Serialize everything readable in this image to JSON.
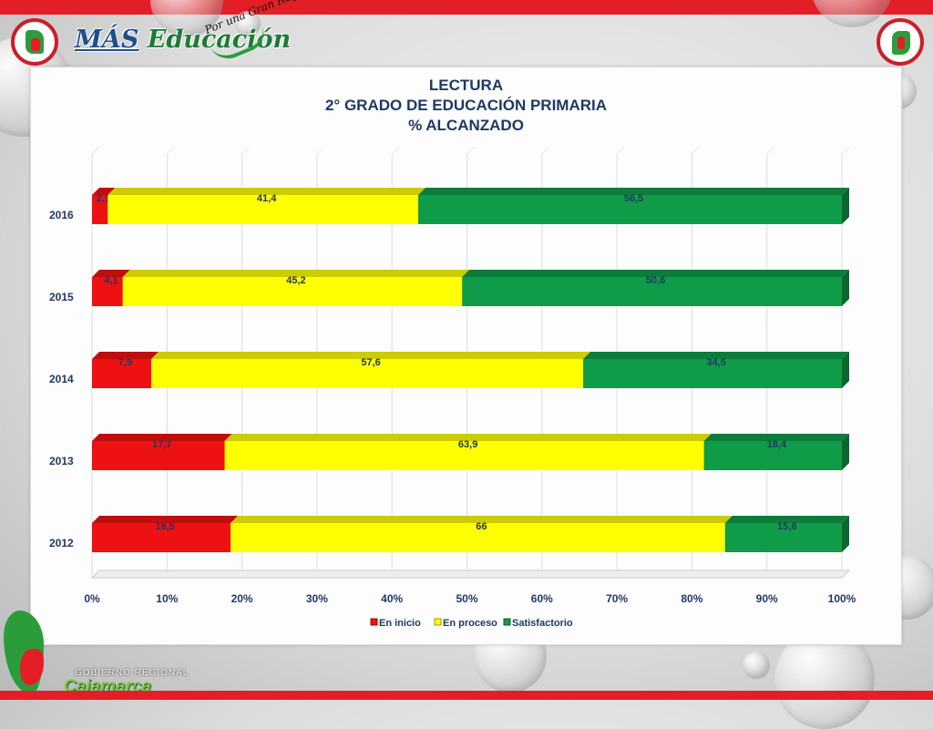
{
  "header": {
    "brand_mas": "MÁS",
    "brand_educacion": "Educación",
    "slogan": "Por una Gran Región"
  },
  "footer": {
    "line1": "GOBIERNO REGIONAL",
    "line2": "Cajamarca"
  },
  "colors": {
    "en_inicio": "#ee1111",
    "en_proceso": "#ffff00",
    "satisfactorio": "#109b48",
    "title": "#1f3864",
    "top_bar": "#e41e26"
  },
  "chart_data": {
    "type": "bar",
    "orientation": "horizontal",
    "stacked": "percent",
    "title_lines": [
      "LECTURA",
      "2° GRADO DE EDUCACIÓN PRIMARIA",
      "% ALCANZADO"
    ],
    "categories": [
      "2016",
      "2015",
      "2014",
      "2013",
      "2012"
    ],
    "series": [
      {
        "name": "En inicio",
        "values": [
          2.1,
          4.1,
          7.9,
          17.7,
          18.5
        ],
        "labels": [
          "2,1",
          "4,1",
          "7,9",
          "17,7",
          "18,5"
        ]
      },
      {
        "name": "En proceso",
        "values": [
          41.4,
          45.2,
          57.6,
          63.9,
          66
        ],
        "labels": [
          "41,4",
          "45,2",
          "57,6",
          "63,9",
          "66"
        ]
      },
      {
        "name": "Satisfactorio",
        "values": [
          56.5,
          50.6,
          34.5,
          18.4,
          15.6
        ],
        "labels": [
          "56,5",
          "50,6",
          "34,5",
          "18,4",
          "15,6"
        ]
      }
    ],
    "x_ticks": [
      "0%",
      "10%",
      "20%",
      "30%",
      "40%",
      "50%",
      "60%",
      "70%",
      "80%",
      "90%",
      "100%"
    ],
    "xlim": [
      0,
      100
    ],
    "grid": true,
    "legend_position": "bottom"
  }
}
